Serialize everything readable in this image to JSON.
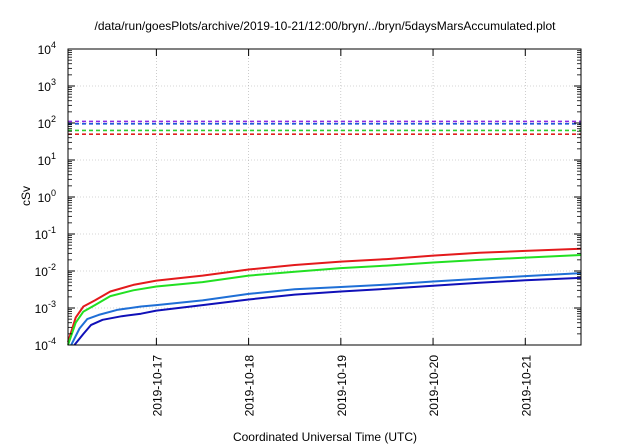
{
  "chart_data": {
    "type": "line",
    "title": "/data/run/goesPlots/archive/2019-10-21/12:00/bryn/../bryn/5daysMarsAccumulated.plot",
    "xlabel": "Coordinated Universal Time (UTC)",
    "ylabel": "cSv",
    "yscale": "log",
    "ylim": [
      0.0001,
      10000
    ],
    "xlim": [
      "2019-10-16T01:00",
      "2019-10-21T14:30"
    ],
    "x_ticks": [
      "2019-10-17",
      "2019-10-18",
      "2019-10-19",
      "2019-10-20",
      "2019-10-21"
    ],
    "y_ticks": [
      {
        "base": "10",
        "exp": "-4"
      },
      {
        "base": "10",
        "exp": "-3"
      },
      {
        "base": "10",
        "exp": "-2"
      },
      {
        "base": "10",
        "exp": "-1"
      },
      {
        "base": "10",
        "exp": "0"
      },
      {
        "base": "10",
        "exp": "1"
      },
      {
        "base": "10",
        "exp": "2"
      },
      {
        "base": "10",
        "exp": "3"
      },
      {
        "base": "10",
        "exp": "4"
      }
    ],
    "grid": true,
    "reference_lines": [
      {
        "value": 110,
        "color": "#8a2be2",
        "style": "dashed"
      },
      {
        "value": 95,
        "color": "#1e5bd8",
        "style": "dashed"
      },
      {
        "value": 63,
        "color": "#2ecc2e",
        "style": "dashed"
      },
      {
        "value": 50,
        "color": "#e02020",
        "style": "dashed"
      }
    ],
    "series": [
      {
        "color": "#e31a1c",
        "points": [
          [
            "2019-10-16T01:00",
            0.00012
          ],
          [
            "2019-10-16T03:00",
            0.00055
          ],
          [
            "2019-10-16T05:00",
            0.0011
          ],
          [
            "2019-10-16T08:00",
            0.0016
          ],
          [
            "2019-10-16T12:00",
            0.0028
          ],
          [
            "2019-10-16T18:00",
            0.0042
          ],
          [
            "2019-10-17T00:00",
            0.0055
          ],
          [
            "2019-10-17T12:00",
            0.0075
          ],
          [
            "2019-10-18T00:00",
            0.011
          ],
          [
            "2019-10-18T12:00",
            0.0145
          ],
          [
            "2019-10-19T00:00",
            0.018
          ],
          [
            "2019-10-19T12:00",
            0.021
          ],
          [
            "2019-10-20T00:00",
            0.026
          ],
          [
            "2019-10-20T12:00",
            0.031
          ],
          [
            "2019-10-21T00:00",
            0.035
          ],
          [
            "2019-10-21T14:30",
            0.04
          ]
        ]
      },
      {
        "color": "#22e022",
        "points": [
          [
            "2019-10-16T01:00",
            0.0001
          ],
          [
            "2019-10-16T03:00",
            0.0004
          ],
          [
            "2019-10-16T05:00",
            0.0008
          ],
          [
            "2019-10-16T08:00",
            0.0012
          ],
          [
            "2019-10-16T12:00",
            0.0021
          ],
          [
            "2019-10-16T18:00",
            0.003
          ],
          [
            "2019-10-17T00:00",
            0.0038
          ],
          [
            "2019-10-17T12:00",
            0.005
          ],
          [
            "2019-10-18T00:00",
            0.0075
          ],
          [
            "2019-10-18T12:00",
            0.0095
          ],
          [
            "2019-10-19T00:00",
            0.012
          ],
          [
            "2019-10-19T12:00",
            0.014
          ],
          [
            "2019-10-20T00:00",
            0.017
          ],
          [
            "2019-10-20T12:00",
            0.02
          ],
          [
            "2019-10-21T00:00",
            0.023
          ],
          [
            "2019-10-21T14:30",
            0.027
          ]
        ]
      },
      {
        "color": "#1f6fd6",
        "points": [
          [
            "2019-10-16T01:50",
            0.0001
          ],
          [
            "2019-10-16T04:00",
            0.00028
          ],
          [
            "2019-10-16T06:00",
            0.0005
          ],
          [
            "2019-10-16T09:00",
            0.00065
          ],
          [
            "2019-10-16T14:00",
            0.0009
          ],
          [
            "2019-10-16T20:00",
            0.0011
          ],
          [
            "2019-10-17T00:00",
            0.0012
          ],
          [
            "2019-10-17T12:00",
            0.0016
          ],
          [
            "2019-10-18T00:00",
            0.0024
          ],
          [
            "2019-10-18T12:00",
            0.0032
          ],
          [
            "2019-10-19T00:00",
            0.0037
          ],
          [
            "2019-10-19T12:00",
            0.0043
          ],
          [
            "2019-10-20T00:00",
            0.0052
          ],
          [
            "2019-10-20T12:00",
            0.0062
          ],
          [
            "2019-10-21T00:00",
            0.0073
          ],
          [
            "2019-10-21T14:30",
            0.0088
          ]
        ]
      },
      {
        "color": "#1010b8",
        "points": [
          [
            "2019-10-16T02:40",
            0.0001
          ],
          [
            "2019-10-16T05:00",
            0.0002
          ],
          [
            "2019-10-16T07:00",
            0.00035
          ],
          [
            "2019-10-16T10:00",
            0.00048
          ],
          [
            "2019-10-16T15:00",
            0.0006
          ],
          [
            "2019-10-16T20:00",
            0.0007
          ],
          [
            "2019-10-17T00:00",
            0.00085
          ],
          [
            "2019-10-17T12:00",
            0.0012
          ],
          [
            "2019-10-18T00:00",
            0.0017
          ],
          [
            "2019-10-18T12:00",
            0.0023
          ],
          [
            "2019-10-19T00:00",
            0.0028
          ],
          [
            "2019-10-19T12:00",
            0.0033
          ],
          [
            "2019-10-20T00:00",
            0.004
          ],
          [
            "2019-10-20T12:00",
            0.0048
          ],
          [
            "2019-10-21T00:00",
            0.0056
          ],
          [
            "2019-10-21T14:30",
            0.0065
          ]
        ]
      }
    ]
  }
}
